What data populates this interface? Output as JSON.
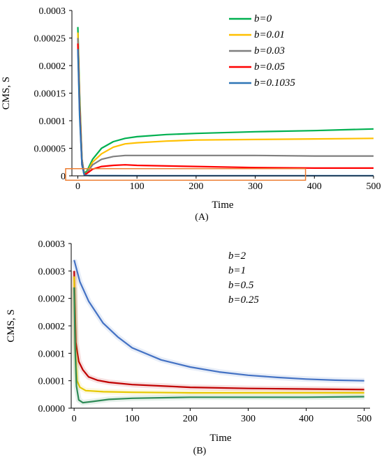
{
  "chart_data": [
    {
      "panel": "A",
      "caption": "(A)",
      "type": "line",
      "xlabel": "Time",
      "ylabel": "CMS, S",
      "xlim": [
        -10,
        500
      ],
      "ylim": [
        0,
        0.0003
      ],
      "x_ticks": [
        0,
        100,
        200,
        300,
        400,
        500
      ],
      "y_ticks": [
        0,
        5e-05,
        0.0001,
        0.00015,
        0.0002,
        0.00025,
        0.0003
      ],
      "y_tick_labels": [
        "0",
        "0.00005",
        "0.0001",
        "0.00015",
        "0.0002",
        "0.00025",
        "0.0003"
      ],
      "grid": false,
      "legend_position": "top-right",
      "annotation": "orange rectangle highlighting near-zero region",
      "series": [
        {
          "name": "b=0",
          "color": "#00b050",
          "points": [
            [
              0,
              0.00027
            ],
            [
              3,
              0.00015
            ],
            [
              7,
              3e-05
            ],
            [
              10,
              5e-06
            ],
            [
              15,
              8e-06
            ],
            [
              25,
              3e-05
            ],
            [
              40,
              5e-05
            ],
            [
              60,
              6.2e-05
            ],
            [
              80,
              6.8e-05
            ],
            [
              100,
              7.1e-05
            ],
            [
              150,
              7.5e-05
            ],
            [
              200,
              7.7e-05
            ],
            [
              300,
              8e-05
            ],
            [
              400,
              8.2e-05
            ],
            [
              500,
              8.5e-05
            ]
          ]
        },
        {
          "name": "b=0.01",
          "color": "#ffc000",
          "points": [
            [
              0,
              0.00026
            ],
            [
              3,
              0.00014
            ],
            [
              7,
              3e-05
            ],
            [
              11,
              3e-06
            ],
            [
              15,
              5e-06
            ],
            [
              25,
              2.5e-05
            ],
            [
              40,
              4e-05
            ],
            [
              60,
              5.2e-05
            ],
            [
              80,
              5.8e-05
            ],
            [
              100,
              6e-05
            ],
            [
              150,
              6.3e-05
            ],
            [
              200,
              6.5e-05
            ],
            [
              300,
              6.6e-05
            ],
            [
              400,
              6.7e-05
            ],
            [
              500,
              6.8e-05
            ]
          ]
        },
        {
          "name": "b=0.03",
          "color": "#7f7f7f",
          "points": [
            [
              0,
              0.00025
            ],
            [
              3,
              0.00013
            ],
            [
              7,
              3e-05
            ],
            [
              11,
              2e-06
            ],
            [
              15,
              5e-06
            ],
            [
              25,
              2e-05
            ],
            [
              40,
              3e-05
            ],
            [
              60,
              3.5e-05
            ],
            [
              80,
              3.7e-05
            ],
            [
              100,
              3.7e-05
            ],
            [
              200,
              3.7e-05
            ],
            [
              300,
              3.7e-05
            ],
            [
              400,
              3.6e-05
            ],
            [
              500,
              3.6e-05
            ]
          ]
        },
        {
          "name": "b=0.05",
          "color": "#ff0000",
          "points": [
            [
              0,
              0.00024
            ],
            [
              3,
              0.00012
            ],
            [
              7,
              2e-05
            ],
            [
              11,
              2e-06
            ],
            [
              15,
              4e-06
            ],
            [
              25,
              1.2e-05
            ],
            [
              40,
              1.7e-05
            ],
            [
              60,
              1.9e-05
            ],
            [
              80,
              2e-05
            ],
            [
              100,
              1.9e-05
            ],
            [
              200,
              1.7e-05
            ],
            [
              300,
              1.5e-05
            ],
            [
              400,
              1.4e-05
            ],
            [
              500,
              1.4e-05
            ]
          ]
        },
        {
          "name": "b=0.1035",
          "color": "#2e75b6",
          "points": [
            [
              0,
              0.00023
            ],
            [
              3,
              0.00011
            ],
            [
              7,
              2e-05
            ],
            [
              11,
              1e-06
            ],
            [
              20,
              5e-07
            ],
            [
              100,
              2e-07
            ],
            [
              200,
              2e-07
            ],
            [
              300,
              2e-07
            ],
            [
              400,
              2e-07
            ],
            [
              500,
              3e-07
            ]
          ]
        }
      ]
    },
    {
      "panel": "B",
      "caption": "(B)",
      "type": "line",
      "xlabel": "Time",
      "ylabel": "CMS, S",
      "xlim": [
        -5,
        510
      ],
      "ylim": [
        0,
        0.0003
      ],
      "x_ticks": [
        0,
        100,
        200,
        300,
        400,
        500
      ],
      "y_ticks": [
        0,
        5e-05,
        0.0001,
        0.00015,
        0.0002,
        0.00025,
        0.0003
      ],
      "y_tick_labels": [
        "0.0000",
        "0.0001",
        "0.0001",
        "0.0002",
        "0.0002",
        "0.0003",
        "0.0003"
      ],
      "grid": false,
      "legend_position": "top-right",
      "series": [
        {
          "name": "b=2",
          "color": "#4472c4",
          "points": [
            [
              0,
              0.00027
            ],
            [
              10,
              0.00023
            ],
            [
              25,
              0.000195
            ],
            [
              50,
              0.000155
            ],
            [
              75,
              0.00013
            ],
            [
              100,
              0.00011
            ],
            [
              150,
              8.8e-05
            ],
            [
              200,
              7.5e-05
            ],
            [
              250,
              6.6e-05
            ],
            [
              300,
              6e-05
            ],
            [
              350,
              5.6e-05
            ],
            [
              400,
              5.3e-05
            ],
            [
              450,
              5.1e-05
            ],
            [
              500,
              5e-05
            ]
          ]
        },
        {
          "name": "b=1",
          "color": "#c00000",
          "points": [
            [
              0,
              0.00025
            ],
            [
              3,
              0.00012
            ],
            [
              8,
              8.5e-05
            ],
            [
              15,
              7e-05
            ],
            [
              25,
              5.7e-05
            ],
            [
              40,
              5.1e-05
            ],
            [
              60,
              4.7e-05
            ],
            [
              100,
              4.3e-05
            ],
            [
              200,
              3.8e-05
            ],
            [
              300,
              3.6e-05
            ],
            [
              400,
              3.5e-05
            ],
            [
              500,
              3.4e-05
            ]
          ]
        },
        {
          "name": "b=0.5",
          "color": "#e6c800",
          "points": [
            [
              0,
              0.00024
            ],
            [
              2,
              0.00011
            ],
            [
              5,
              5e-05
            ],
            [
              10,
              3.8e-05
            ],
            [
              20,
              3.2e-05
            ],
            [
              50,
              3e-05
            ],
            [
              100,
              2.9e-05
            ],
            [
              200,
              2.8e-05
            ],
            [
              300,
              2.8e-05
            ],
            [
              400,
              2.8e-05
            ],
            [
              500,
              2.8e-05
            ]
          ]
        },
        {
          "name": "b=0.25",
          "color": "#2e8b57",
          "points": [
            [
              0,
              0.00022
            ],
            [
              2,
              0.0001
            ],
            [
              4,
              4e-05
            ],
            [
              8,
              1.5e-05
            ],
            [
              15,
              1e-05
            ],
            [
              30,
              1.2e-05
            ],
            [
              60,
              1.6e-05
            ],
            [
              100,
              1.8e-05
            ],
            [
              200,
              2e-05
            ],
            [
              300,
              2e-05
            ],
            [
              400,
              2e-05
            ],
            [
              500,
              2.1e-05
            ]
          ]
        }
      ]
    }
  ]
}
